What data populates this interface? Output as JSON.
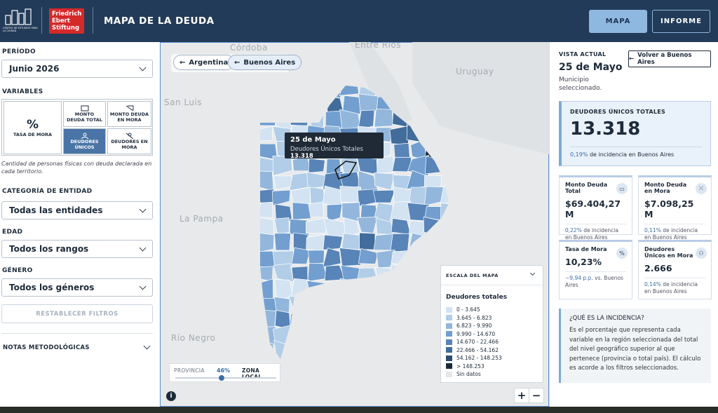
{
  "header": {
    "logo_left": "CENTRO DE ESTUDIOS PARA LA CIUDAD",
    "logo_right": [
      "Friedrich",
      "Ebert",
      "Stiftung"
    ],
    "title": "MAPA DE LA DEUDA",
    "nav": [
      "MAPA",
      "INFORME"
    ]
  },
  "sidebar": {
    "period": {
      "label": "PERÍODO",
      "value": "Junio 2026"
    },
    "variables": {
      "label": "VARIABLES",
      "items": [
        {
          "icon": "%",
          "label": "TASA DE MORA",
          "selected": false
        },
        {
          "label": "MONTO DEUDA TOTAL",
          "selected": false
        },
        {
          "label": "MONTO DEUDA EN MORA",
          "selected": false
        },
        {
          "label": "DEUDORES ÚNICOS",
          "selected": true
        },
        {
          "label": "DEUDORES EN MORA",
          "selected": false
        }
      ],
      "description": "Cantidad de personas físicas con deuda declarada en cada territorio."
    },
    "filters": [
      {
        "label": "CATEGORÍA DE ENTIDAD",
        "value": "Todas las entidades"
      },
      {
        "label": "EDAD",
        "value": "Todos los rangos"
      },
      {
        "label": "GÉNERO",
        "value": "Todos los géneros"
      }
    ],
    "reset": "RESTABLECER FILTROS",
    "notes": "NOTAS METODOLÓGICAS"
  },
  "map": {
    "breadcrumbs": [
      "Argentina",
      "Buenos Aires"
    ],
    "places": [
      "Córdoba",
      "Entre Ríos",
      "Uruguay",
      "San Luis",
      "La Pampa",
      "Río Negro"
    ],
    "tooltip": {
      "name": "25 de Mayo",
      "label": "Deudores Únicos Totales",
      "value": "13.318"
    },
    "legend": {
      "header": "ESCALA DEL MAPA",
      "title": "Deudores totales",
      "items": [
        {
          "label": "0 - 3.645",
          "color": "#d3e3f2"
        },
        {
          "label": "3.645 - 6.823",
          "color": "#b1cde8"
        },
        {
          "label": "6.823 - 9.990",
          "color": "#93b7dc"
        },
        {
          "label": "9.990 - 14.670",
          "color": "#729fcf"
        },
        {
          "label": "14.670 - 22.466",
          "color": "#5884b8"
        },
        {
          "label": "22.466 - 54.162",
          "color": "#416c9b"
        },
        {
          "label": "54.162 - 148.253",
          "color": "#2e4c70"
        },
        {
          "label": "> 148.253",
          "color": "#1a2a3c"
        },
        {
          "label": "Sin datos",
          "color": "#e4e7ea"
        }
      ]
    },
    "slider": {
      "left": "PROVINCIA",
      "value": 46,
      "label": "46%",
      "right": "ZONA LOCAL"
    },
    "zoom": [
      "+",
      "−"
    ]
  },
  "panel": {
    "kicker": "VISTA ACTUAL",
    "name": "25 de Mayo",
    "subtitle": "Municipio seleccionado.",
    "back": "Volver a Buenos Aires",
    "main": {
      "title": "DEUDORES ÚNICOS TOTALES",
      "value": "13.318",
      "pct": "0,19%",
      "note": "de incidencia en Buenos Aires"
    },
    "cards": [
      {
        "title": "Monto Deuda Total",
        "value": "$69.404,27 M",
        "pct": "0,22%",
        "note": "de incidencia en Buenos Aires"
      },
      {
        "title": "Monto Deuda en Mora",
        "value": "$7.098,25 M",
        "pct": "0,11%",
        "note": "de incidencia en Buenos Aires"
      },
      {
        "title": "Tasa de Mora",
        "value": "10,23%",
        "pct": "−9,94 p.p.",
        "note": "vs. Buenos Aires"
      },
      {
        "title": "Deudores Únicos en Mora",
        "value": "2.666",
        "pct": "0,14%",
        "note": "de incidencia en Buenos Aires"
      }
    ],
    "info": {
      "title": "¿QUÉ ES LA INCIDENCIA?",
      "text": "Es el porcentaje que representa cada variable en la región seleccionada del total del nivel geográfico superior al que pertenece (provincia o total país). El cálculo es acorde a los filtros seleccionados."
    }
  }
}
